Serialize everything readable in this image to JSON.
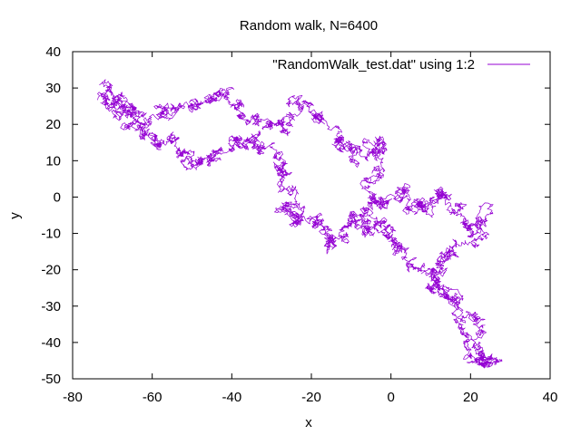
{
  "chart_data": {
    "type": "line",
    "title": "Random walk, N=6400",
    "xlabel": "x",
    "ylabel": "y",
    "xlim": [
      -80,
      40
    ],
    "ylim": [
      -50,
      40
    ],
    "xticks": [
      -80,
      -60,
      -40,
      -20,
      0,
      20,
      40
    ],
    "yticks": [
      -50,
      -40,
      -30,
      -20,
      -10,
      0,
      10,
      20,
      30,
      40
    ],
    "grid": false,
    "legend_position": "top-right",
    "series": [
      {
        "name": "\"RandomWalk_test.dat\" using 1:2",
        "color": "#9400d3",
        "n_steps": 6400,
        "waypoints": [
          [
            -74,
            27
          ],
          [
            -70,
            30
          ],
          [
            -66,
            22
          ],
          [
            -64,
            19
          ],
          [
            -59,
            22
          ],
          [
            -55,
            26
          ],
          [
            -50,
            24
          ],
          [
            -46,
            27
          ],
          [
            -42,
            30
          ],
          [
            -40,
            25
          ],
          [
            -35,
            22
          ],
          [
            -30,
            20
          ],
          [
            -26,
            18
          ],
          [
            -24,
            25
          ],
          [
            -20,
            24
          ],
          [
            -18,
            20
          ],
          [
            -14,
            15
          ],
          [
            -12,
            13
          ],
          [
            -8,
            11
          ],
          [
            -4,
            13
          ],
          [
            -1,
            15
          ],
          [
            -3,
            8
          ],
          [
            -6,
            2
          ],
          [
            -4,
            -3
          ],
          [
            0,
            -1
          ],
          [
            3,
            2
          ],
          [
            5,
            -3
          ],
          [
            8,
            0
          ],
          [
            10,
            -4
          ],
          [
            12,
            2
          ],
          [
            15,
            -2
          ],
          [
            18,
            -6
          ],
          [
            21,
            -10
          ],
          [
            24,
            -4
          ],
          [
            20,
            -12
          ],
          [
            16,
            -16
          ],
          [
            12,
            -18
          ],
          [
            10,
            -24
          ],
          [
            14,
            -26
          ],
          [
            17,
            -30
          ],
          [
            21,
            -34
          ],
          [
            24,
            -38
          ],
          [
            22,
            -44
          ],
          [
            26,
            -43
          ],
          [
            23,
            -46
          ],
          [
            20,
            -42
          ],
          [
            17,
            -36
          ],
          [
            14,
            -28
          ],
          [
            10,
            -22
          ],
          [
            6,
            -18
          ],
          [
            3,
            -16
          ],
          [
            0,
            -12
          ],
          [
            -2,
            -8
          ],
          [
            -4,
            -4
          ],
          [
            -6,
            -10
          ],
          [
            -8,
            -6
          ],
          [
            -11,
            -8
          ],
          [
            -13,
            -13
          ],
          [
            -16,
            -12
          ],
          [
            -18,
            -7
          ],
          [
            -21,
            -5
          ],
          [
            -24,
            -8
          ],
          [
            -26,
            -4
          ],
          [
            -24,
            0
          ],
          [
            -26,
            4
          ],
          [
            -28,
            8
          ],
          [
            -30,
            12
          ],
          [
            -33,
            16
          ],
          [
            -37,
            14
          ],
          [
            -40,
            16
          ],
          [
            -43,
            11
          ],
          [
            -46,
            10
          ],
          [
            -50,
            9
          ],
          [
            -53,
            13
          ],
          [
            -56,
            16
          ],
          [
            -60,
            15
          ],
          [
            -62,
            20
          ],
          [
            -65,
            24
          ],
          [
            -68,
            26
          ],
          [
            -70,
            24
          ],
          [
            -73,
            26
          ]
        ]
      }
    ]
  }
}
